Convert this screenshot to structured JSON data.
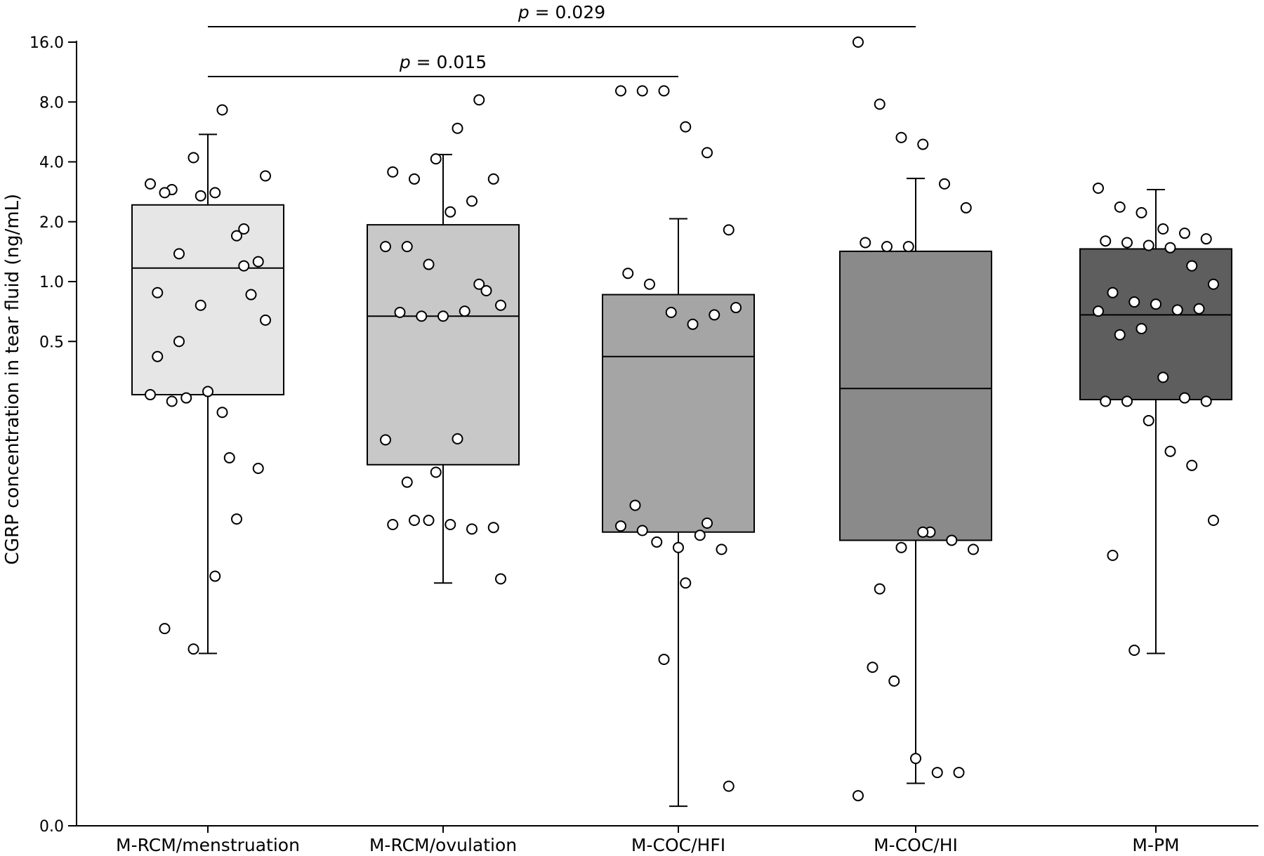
{
  "chart_data": {
    "type": "box",
    "ylabel": "CGRP concentration in tear fluid (ng/mL)",
    "yscale": "log2",
    "yticks": [
      {
        "value": 16,
        "label": "16.0"
      },
      {
        "value": 8,
        "label": "8.0"
      },
      {
        "value": 4,
        "label": "4.0"
      },
      {
        "value": 2,
        "label": "2.0"
      },
      {
        "value": 1,
        "label": "1.0"
      },
      {
        "value": 0.5,
        "label": "0.5"
      },
      {
        "value": 0.0,
        "label": "0.0"
      }
    ],
    "categories": [
      "M-RCM/menstruation",
      "M-RCM/ovulation",
      "M-COC/HFI",
      "M-COC/HI",
      "M-PM"
    ],
    "boxes": [
      {
        "name": "M-RCM/menstruation",
        "color": "#e6e6e6",
        "q1": 0.27,
        "median": 1.17,
        "q3": 2.43,
        "whisker_low": 0.0135,
        "whisker_high": 5.5,
        "points": [
          0.27,
          0.25,
          0.0142,
          0.033,
          0.064,
          0.115,
          0.88,
          1.38,
          2.7,
          7.3,
          1.2,
          0.64,
          0.018,
          0.26,
          0.28,
          0.13,
          0.86,
          3.1,
          2.9,
          4.2,
          2.8,
          1.7,
          1.26,
          0.42,
          0.5,
          0.76,
          0.22,
          1.84,
          3.4,
          2.8
        ]
      },
      {
        "name": "M-RCM/ovulation",
        "color": "#c8c8c8",
        "q1": 0.12,
        "median": 0.67,
        "q3": 1.93,
        "whisker_low": 0.0305,
        "whisker_high": 4.35,
        "points": [
          0.16,
          0.098,
          0.063,
          0.06,
          0.057,
          0.058,
          0.06,
          0.063,
          0.11,
          0.162,
          0.97,
          0.76,
          0.7,
          0.67,
          0.67,
          0.71,
          0.9,
          1.5,
          1.5,
          1.22,
          2.24,
          2.54,
          3.28,
          3.56,
          3.28,
          4.14,
          5.9,
          8.2,
          0.032
        ]
      },
      {
        "name": "M-COC/HFI",
        "color": "#a5a5a5",
        "q1": 0.055,
        "median": 0.42,
        "q3": 0.86,
        "whisker_low": 0.0023,
        "whisker_high": 2.07,
        "points": [
          9.1,
          9.1,
          9.1,
          6.0,
          4.45,
          1.82,
          1.1,
          0.97,
          0.7,
          0.61,
          0.68,
          0.74,
          0.075,
          0.049,
          0.046,
          0.053,
          0.045,
          0.059,
          0.056,
          0.0126,
          0.0305,
          0.061,
          0.0029
        ]
      },
      {
        "name": "M-COC/HI",
        "color": "#8a8a8a",
        "q1": 0.05,
        "median": 0.29,
        "q3": 1.42,
        "whisker_low": 0.003,
        "whisker_high": 3.3,
        "points": [
          16.0,
          7.8,
          5.3,
          4.9,
          3.1,
          2.35,
          1.57,
          1.5,
          1.5,
          0.055,
          0.05,
          0.045,
          0.0115,
          0.0098,
          0.004,
          0.0034,
          0.0034,
          0.0026,
          0.0285,
          0.046,
          0.055
        ]
      },
      {
        "name": "M-PM",
        "color": "#5e5e5e",
        "q1": 0.255,
        "median": 0.68,
        "q3": 1.46,
        "whisker_low": 0.0135,
        "whisker_high": 2.9,
        "points": [
          2.95,
          2.37,
          2.22,
          1.84,
          1.75,
          1.64,
          1.6,
          1.57,
          1.52,
          1.48,
          1.2,
          0.97,
          0.88,
          0.79,
          0.77,
          0.72,
          0.73,
          0.71,
          0.54,
          0.58,
          0.33,
          0.26,
          0.25,
          0.25,
          0.25,
          0.2,
          0.14,
          0.119,
          0.063,
          0.042,
          0.014
        ]
      }
    ],
    "significance": [
      {
        "from": "M-RCM/menstruation",
        "to": "M-COC/HFI",
        "label_p": "p",
        "label_rest": " = 0.015"
      },
      {
        "from": "M-RCM/menstruation",
        "to": "M-COC/HI",
        "label_p": "p",
        "label_rest": " = 0.029"
      }
    ]
  }
}
